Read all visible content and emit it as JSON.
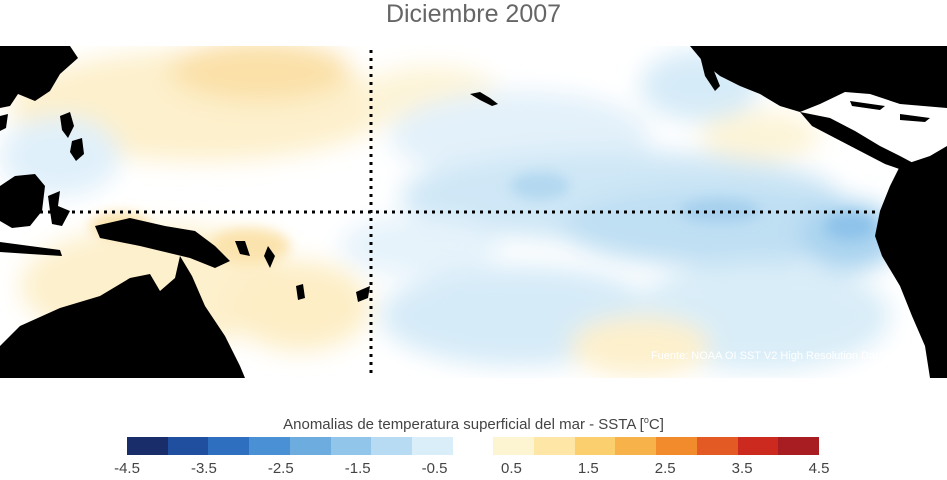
{
  "title": "Diciembre 2007",
  "map": {
    "source_credit": "Fuente: NOAA OI SST V2 High Resolution Dataset",
    "region": "Tropical Pacific Ocean",
    "land_color": "#000000",
    "reference_lines": [
      "equator (dotted)",
      "date line 180° (dotted)"
    ]
  },
  "colorbar": {
    "title": "Anomalias de temperatura superficial del mar - SSTA  [",
    "title_unit_sup": "o",
    "title_unit_end": "C]",
    "colors": [
      "#1a2d6b",
      "#1f4f9e",
      "#2f6fbf",
      "#4a90d4",
      "#6cacdf",
      "#91c5ea",
      "#b7dbf2",
      "#daeef9",
      "#ffffff",
      "#fdf4d2",
      "#fde6a6",
      "#fbcf6e",
      "#f8b24a",
      "#f28b2c",
      "#e35a24",
      "#cc2a1e",
      "#a71d21"
    ],
    "tick_labels": [
      "-4.5",
      "-3.5",
      "-2.5",
      "-1.5",
      "-0.5",
      "0.5",
      "1.5",
      "2.5",
      "3.5",
      "4.5"
    ]
  }
}
